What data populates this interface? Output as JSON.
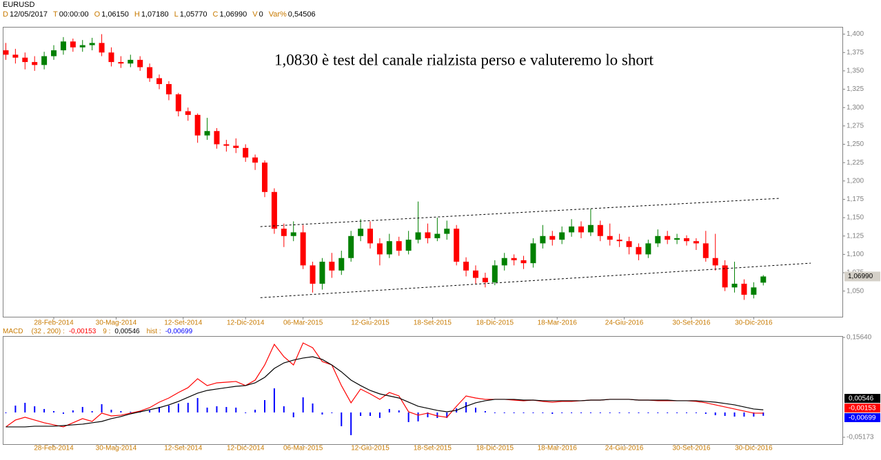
{
  "header": {
    "symbol": "EURUSD",
    "fields": [
      {
        "key": "D",
        "value": "12/05/2017"
      },
      {
        "key": "T",
        "value": "00:00:00"
      },
      {
        "key": "O",
        "value": "1,06150"
      },
      {
        "key": "H",
        "value": "1,07180"
      },
      {
        "key": "L",
        "value": "1,05770"
      },
      {
        "key": "C",
        "value": "1,06990"
      },
      {
        "key": "V",
        "value": "0"
      },
      {
        "key": "Var%",
        "value": "0,54506"
      }
    ]
  },
  "chart_data": [
    {
      "type": "candlestick",
      "annotation": "1,0830 è test del canale rialzista perso e valuteremo lo short",
      "x": [
        0,
        2,
        4,
        6,
        8,
        10,
        12,
        14,
        16,
        18,
        20,
        22,
        24,
        26,
        28,
        30,
        32,
        34,
        36,
        38,
        40,
        42,
        44,
        46,
        48,
        50,
        52,
        54,
        56,
        58,
        60,
        62,
        64,
        66,
        68,
        70,
        72,
        74,
        76,
        78,
        80,
        82,
        84,
        86,
        88,
        90,
        92,
        94,
        96,
        98,
        100,
        102,
        104,
        106,
        108,
        110,
        112,
        114,
        116,
        118,
        120,
        122,
        124,
        126,
        128,
        130,
        132,
        134,
        136,
        138,
        140,
        142,
        144,
        146,
        148,
        150,
        152,
        154,
        156,
        158
      ],
      "open": [
        1.378,
        1.372,
        1.368,
        1.362,
        1.358,
        1.37,
        1.378,
        1.39,
        1.382,
        1.385,
        1.388,
        1.375,
        1.362,
        1.36,
        1.365,
        1.355,
        1.34,
        1.332,
        1.318,
        1.295,
        1.29,
        1.262,
        1.268,
        1.25,
        1.248,
        1.245,
        1.232,
        1.225,
        1.185,
        1.135,
        1.125,
        1.13,
        1.085,
        1.06,
        1.09,
        1.078,
        1.095,
        1.125,
        1.135,
        1.115,
        1.1,
        1.118,
        1.105,
        1.12,
        1.13,
        1.122,
        1.128,
        1.135,
        1.09,
        1.078,
        1.068,
        1.062,
        1.085,
        1.095,
        1.092,
        1.088,
        1.115,
        1.125,
        1.12,
        1.13,
        1.138,
        1.13,
        1.14,
        1.125,
        1.12,
        1.118,
        1.11,
        1.1,
        1.115,
        1.125,
        1.12,
        1.122,
        1.118,
        1.115,
        1.095,
        1.085,
        1.055,
        1.06,
        1.045,
        1.0615
      ],
      "high": [
        1.388,
        1.38,
        1.375,
        1.37,
        1.376,
        1.385,
        1.396,
        1.394,
        1.392,
        1.395,
        1.4,
        1.382,
        1.37,
        1.372,
        1.37,
        1.36,
        1.345,
        1.336,
        1.32,
        1.3,
        1.292,
        1.286,
        1.272,
        1.256,
        1.258,
        1.25,
        1.236,
        1.228,
        1.19,
        1.142,
        1.145,
        1.14,
        1.09,
        1.095,
        1.102,
        1.105,
        1.132,
        1.148,
        1.145,
        1.122,
        1.128,
        1.124,
        1.132,
        1.172,
        1.142,
        1.15,
        1.146,
        1.14,
        1.096,
        1.085,
        1.075,
        1.092,
        1.102,
        1.1,
        1.098,
        1.122,
        1.14,
        1.132,
        1.138,
        1.148,
        1.145,
        1.162,
        1.146,
        1.142,
        1.128,
        1.124,
        1.115,
        1.12,
        1.134,
        1.132,
        1.128,
        1.126,
        1.122,
        1.132,
        1.128,
        1.092,
        1.09,
        1.066,
        1.062,
        1.0718
      ],
      "low": [
        1.365,
        1.36,
        1.352,
        1.35,
        1.352,
        1.365,
        1.372,
        1.376,
        1.376,
        1.378,
        1.37,
        1.356,
        1.354,
        1.355,
        1.35,
        1.335,
        1.325,
        1.31,
        1.288,
        1.282,
        1.252,
        1.256,
        1.244,
        1.24,
        1.238,
        1.226,
        1.215,
        1.178,
        1.128,
        1.11,
        1.118,
        1.08,
        1.048,
        1.052,
        1.068,
        1.072,
        1.09,
        1.118,
        1.108,
        1.085,
        1.095,
        1.098,
        1.1,
        1.115,
        1.115,
        1.118,
        1.12,
        1.085,
        1.07,
        1.06,
        1.055,
        1.058,
        1.078,
        1.085,
        1.08,
        1.082,
        1.108,
        1.112,
        1.114,
        1.124,
        1.122,
        1.125,
        1.118,
        1.112,
        1.11,
        1.1,
        1.092,
        1.095,
        1.11,
        1.114,
        1.114,
        1.112,
        1.106,
        1.09,
        1.078,
        1.05,
        1.048,
        1.038,
        1.04,
        1.0577
      ],
      "close": [
        1.372,
        1.368,
        1.362,
        1.358,
        1.37,
        1.378,
        1.39,
        1.382,
        1.385,
        1.388,
        1.375,
        1.362,
        1.36,
        1.365,
        1.355,
        1.34,
        1.332,
        1.318,
        1.295,
        1.29,
        1.262,
        1.268,
        1.25,
        1.248,
        1.245,
        1.232,
        1.225,
        1.185,
        1.135,
        1.125,
        1.13,
        1.085,
        1.06,
        1.09,
        1.078,
        1.095,
        1.125,
        1.135,
        1.115,
        1.1,
        1.118,
        1.105,
        1.12,
        1.13,
        1.122,
        1.128,
        1.135,
        1.09,
        1.078,
        1.068,
        1.062,
        1.085,
        1.095,
        1.092,
        1.088,
        1.115,
        1.125,
        1.12,
        1.13,
        1.138,
        1.13,
        1.14,
        1.125,
        1.12,
        1.118,
        1.11,
        1.1,
        1.115,
        1.125,
        1.12,
        1.122,
        1.118,
        1.115,
        1.095,
        1.085,
        1.055,
        1.06,
        1.045,
        1.055,
        1.0699
      ],
      "up_color": "#008000",
      "down_color": "#ff0000",
      "trendlines": [
        {
          "x": [
            53.1,
            161.4
          ],
          "y": [
            1.1378,
            1.1763
          ]
        },
        {
          "x": [
            53.1,
            167.9
          ],
          "y": [
            1.041,
            1.088
          ]
        }
      ],
      "last_value": 1.0699,
      "last_label": "1,06990",
      "xlim": [
        -0.5,
        174.5
      ],
      "xticks": [
        {
          "value": 10,
          "label": "28-Feb-2014"
        },
        {
          "value": 23,
          "label": "30-Mag-2014"
        },
        {
          "value": 37,
          "label": "12-Set-2014"
        },
        {
          "value": 50,
          "label": "12-Dic-2014"
        },
        {
          "value": 62,
          "label": "06-Mar-2015"
        },
        {
          "value": 76,
          "label": "12-Giu-2015"
        },
        {
          "value": 89,
          "label": "18-Set-2015"
        },
        {
          "value": 102,
          "label": "18-Dic-2015"
        },
        {
          "value": 115,
          "label": "18-Mar-2016"
        },
        {
          "value": 129,
          "label": "24-Giu-2016"
        },
        {
          "value": 143,
          "label": "30-Set-2016"
        },
        {
          "value": 156,
          "label": "30-Dic-2016"
        }
      ],
      "ylim": [
        1.015,
        1.409
      ],
      "yticks": [
        {
          "value": 1.05,
          "label": "1,050"
        },
        {
          "value": 1.075,
          "label": "1,075"
        },
        {
          "value": 1.1,
          "label": "1,100"
        },
        {
          "value": 1.125,
          "label": "1,125"
        },
        {
          "value": 1.15,
          "label": "1,150"
        },
        {
          "value": 1.175,
          "label": "1,175"
        },
        {
          "value": 1.2,
          "label": "1,200"
        },
        {
          "value": 1.225,
          "label": "1,225"
        },
        {
          "value": 1.25,
          "label": "1,250"
        },
        {
          "value": 1.275,
          "label": "1,275"
        },
        {
          "value": 1.3,
          "label": "1,300"
        },
        {
          "value": 1.325,
          "label": "1,325"
        },
        {
          "value": 1.35,
          "label": "1,350"
        },
        {
          "value": 1.375,
          "label": "1,375"
        },
        {
          "value": 1.4,
          "label": "1,400"
        }
      ]
    },
    {
      "type": "macd",
      "params": "(32 , 200) :",
      "x": [
        0,
        2,
        4,
        6,
        8,
        10,
        12,
        14,
        16,
        18,
        20,
        22,
        24,
        26,
        28,
        30,
        32,
        34,
        36,
        38,
        40,
        42,
        44,
        46,
        48,
        50,
        52,
        54,
        56,
        58,
        60,
        62,
        64,
        66,
        68,
        70,
        72,
        74,
        76,
        78,
        80,
        82,
        84,
        86,
        88,
        90,
        92,
        94,
        96,
        98,
        100,
        102,
        104,
        106,
        108,
        110,
        112,
        114,
        116,
        118,
        120,
        122,
        124,
        126,
        128,
        130,
        132,
        134,
        136,
        138,
        140,
        142,
        144,
        146,
        148,
        150,
        152,
        154,
        156,
        158
      ],
      "series": [
        {
          "name": "MACD",
          "color": "#ff0000",
          "last_label": "-0,00153",
          "values": [
            -0.0301,
            -0.0158,
            -0.01,
            -0.0158,
            -0.0215,
            -0.0258,
            -0.0301,
            -0.0215,
            -0.0129,
            -0.0187,
            -0.0014,
            -0.0072,
            -0.0057,
            -0.0014,
            0.0029,
            0.01,
            0.0215,
            0.0301,
            0.0416,
            0.0517,
            0.0703,
            0.056,
            0.0617,
            0.0631,
            0.0646,
            0.056,
            0.0674,
            0.099,
            0.1421,
            0.1162,
            0.099,
            0.1449,
            0.1349,
            0.1062,
            0.099,
            0.056,
            0.0201,
            0.0488,
            0.0387,
            0.0273,
            0.0416,
            0.0344,
            0.0014,
            -0.0057,
            -0.0014,
            -0.0072,
            -0.01,
            0.0129,
            0.0344,
            0.0301,
            0.0273,
            0.0273,
            0.0273,
            0.0258,
            0.0244,
            0.0258,
            0.023,
            0.0215,
            0.023,
            0.023,
            0.0244,
            0.0258,
            0.0258,
            0.0273,
            0.0273,
            0.0273,
            0.0258,
            0.0258,
            0.0244,
            0.0244,
            0.0244,
            0.0244,
            0.023,
            0.0201,
            0.0158,
            0.0115,
            0.0072,
            0.0029,
            -0.0014,
            -0.00153
          ]
        },
        {
          "name": "9 :",
          "color": "#000000",
          "last_label": "0,00546",
          "values": [
            -0.0301,
            -0.0301,
            -0.0301,
            -0.0287,
            -0.0287,
            -0.0287,
            -0.0273,
            -0.0258,
            -0.0244,
            -0.0215,
            -0.0187,
            -0.0129,
            -0.0086,
            -0.0029,
            0.0014,
            0.0057,
            0.01,
            0.0158,
            0.023,
            0.0316,
            0.0402,
            0.0459,
            0.0488,
            0.0517,
            0.0545,
            0.056,
            0.0617,
            0.0732,
            0.0918,
            0.1033,
            0.1091,
            0.1134,
            0.1162,
            0.1105,
            0.099,
            0.0847,
            0.0674,
            0.056,
            0.0459,
            0.0387,
            0.0344,
            0.0301,
            0.0215,
            0.0129,
            0.0086,
            0.0043,
            0.0014,
            0.0043,
            0.0129,
            0.0201,
            0.0244,
            0.0273,
            0.0273,
            0.0273,
            0.0258,
            0.0258,
            0.0244,
            0.0244,
            0.0244,
            0.0244,
            0.0244,
            0.0258,
            0.0258,
            0.0273,
            0.0273,
            0.0273,
            0.0258,
            0.0258,
            0.0258,
            0.0258,
            0.0244,
            0.0244,
            0.0244,
            0.023,
            0.0215,
            0.0187,
            0.0158,
            0.0115,
            0.0072,
            0.00546
          ]
        },
        {
          "name": "hist :",
          "color": "#0000ff",
          "last_label": "-0,00699",
          "values": [
            0,
            0.0143,
            0.0201,
            0.0129,
            0.0072,
            0.0029,
            -0.0028,
            0.0043,
            0.0115,
            0.0028,
            0.0173,
            0.0057,
            0.0029,
            0.0015,
            0.0015,
            0.0043,
            0.0115,
            0.0143,
            0.0186,
            0.0201,
            0.0301,
            0.0101,
            0.0129,
            0.0114,
            0.0101,
            0,
            0.0057,
            0.0258,
            0.0503,
            0.0129,
            -0.0101,
            0.0315,
            0.0187,
            -0.0043,
            0,
            -0.0287,
            -0.0473,
            -0.0072,
            -0.0072,
            -0.0114,
            0.0072,
            0.0043,
            -0.0201,
            -0.0186,
            -0.01,
            -0.0115,
            -0.0114,
            0.0086,
            0.0215,
            0.01,
            0.0029,
            0,
            0,
            -0.0015,
            -0.0014,
            0,
            -0.0014,
            -0.0029,
            -0.0014,
            -0.0014,
            0,
            0,
            0,
            0,
            0,
            0,
            0,
            0,
            -0.0014,
            -0.0014,
            0,
            0,
            -0.0014,
            -0.0029,
            -0.0057,
            -0.0072,
            -0.0086,
            -0.0086,
            -0.0086,
            -0.00699
          ]
        }
      ],
      "xlim": [
        -0.5,
        174.5
      ],
      "xticks": [
        {
          "value": 10,
          "label": "28-Feb-2014"
        },
        {
          "value": 23,
          "label": "30-Mag-2014"
        },
        {
          "value": 37,
          "label": "12-Set-2014"
        },
        {
          "value": 50,
          "label": "12-Dic-2014"
        },
        {
          "value": 62,
          "label": "06-Mar-2015"
        },
        {
          "value": 76,
          "label": "12-Giu-2015"
        },
        {
          "value": 89,
          "label": "18-Set-2015"
        },
        {
          "value": 102,
          "label": "18-Dic-2015"
        },
        {
          "value": 115,
          "label": "18-Mar-2016"
        },
        {
          "value": 129,
          "label": "24-Giu-2016"
        },
        {
          "value": 143,
          "label": "30-Set-2016"
        },
        {
          "value": 156,
          "label": "30-Dic-2016"
        }
      ],
      "ylim": [
        -0.05173,
        0.1564
      ],
      "yticks": [
        {
          "value": -0.05173,
          "label": "-0,05173"
        },
        {
          "value": 0.1564,
          "label": "0,15640"
        }
      ]
    }
  ]
}
